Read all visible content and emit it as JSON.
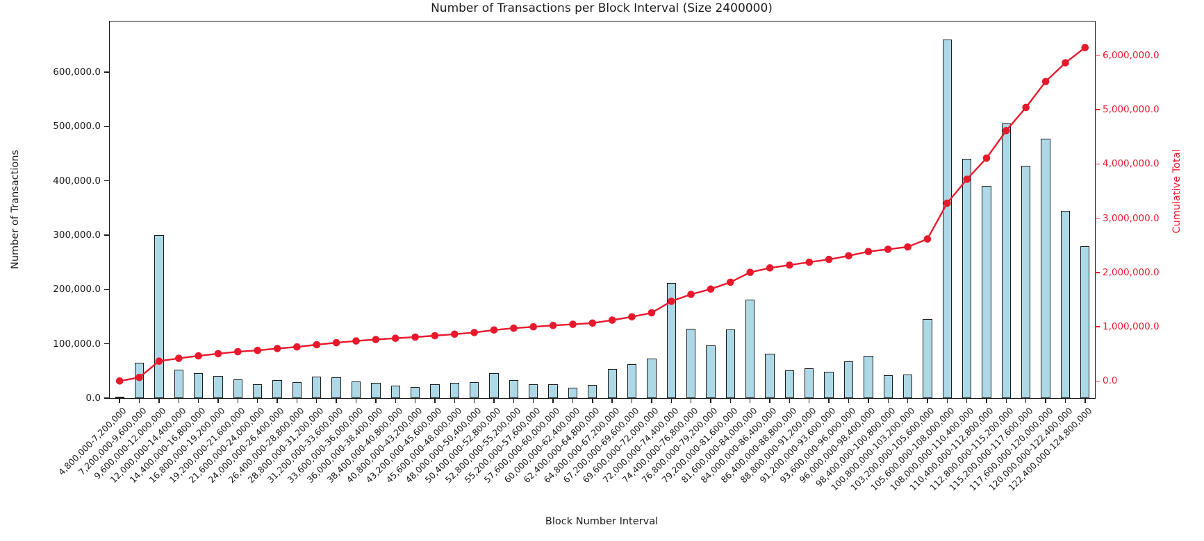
{
  "title": "Number of Transactions per Block Interval (Size 2400000)",
  "accent_color": "#e8192c",
  "bar_color": "#add8e6",
  "bar_edge_color": "#1c1c1c",
  "chart_data": {
    "type": "bar",
    "title": "Number of Transactions per Block Interval (Size 2400000)",
    "xlabel": "Block Number Interval",
    "ylabel_left": "Number of Transactions",
    "ylabel_right": "Cumulative Total",
    "grid": false,
    "legend": "none",
    "categories": [
      "4,800,000-7,200,000",
      "7,200,000-9,600,000",
      "9,600,000-12,000,000",
      "12,000,000-14,400,000",
      "14,400,000-16,800,000",
      "16,800,000-19,200,000",
      "19,200,000-21,600,000",
      "21,600,000-24,000,000",
      "24,000,000-26,400,000",
      "26,400,000-28,800,000",
      "28,800,000-31,200,000",
      "31,200,000-33,600,000",
      "33,600,000-36,000,000",
      "36,000,000-38,400,000",
      "38,400,000-40,800,000",
      "40,800,000-43,200,000",
      "43,200,000-45,600,000",
      "45,600,000-48,000,000",
      "48,000,000-50,400,000",
      "50,400,000-52,800,000",
      "52,800,000-55,200,000",
      "55,200,000-57,600,000",
      "57,600,000-60,000,000",
      "60,000,000-62,400,000",
      "62,400,000-64,800,000",
      "64,800,000-67,200,000",
      "67,200,000-69,600,000",
      "69,600,000-72,000,000",
      "72,000,000-74,400,000",
      "74,400,000-76,800,000",
      "76,800,000-79,200,000",
      "79,200,000-81,600,000",
      "81,600,000-84,000,000",
      "84,000,000-86,400,000",
      "86,400,000-88,800,000",
      "88,800,000-91,200,000",
      "91,200,000-93,600,000",
      "93,600,000-96,000,000",
      "96,000,000-98,400,000",
      "98,400,000-100,800,000",
      "100,800,000-103,200,000",
      "103,200,000-105,600,000",
      "105,600,000-108,000,000",
      "108,000,000-110,400,000",
      "110,400,000-112,800,000",
      "112,800,000-115,200,000",
      "115,200,000-117,600,000",
      "117,600,000-120,000,000",
      "120,000,000-122,400,000",
      "122,400,000-124,800,000"
    ],
    "series": [
      {
        "name": "Number of Transactions",
        "type": "bar",
        "axis": "left",
        "values": [
          2000,
          65500,
          300000,
          52000,
          45500,
          41000,
          35000,
          25000,
          33500,
          30000,
          40000,
          38000,
          31000,
          28000,
          23000,
          21000,
          25500,
          28500,
          30000,
          46000,
          33000,
          26000,
          26000,
          19500,
          24000,
          53000,
          62000,
          73000,
          212000,
          128000,
          97000,
          127000,
          181000,
          82000,
          51500,
          54500,
          49000,
          68000,
          78000,
          41500,
          44000,
          145000,
          660000,
          440000,
          391000,
          505000,
          427000,
          477000,
          345000,
          280000
        ]
      },
      {
        "name": "Cumulative Total",
        "type": "line",
        "axis": "right",
        "values": [
          2000,
          67500,
          367500,
          419500,
          465000,
          506000,
          541000,
          566000,
          599500,
          629500,
          669500,
          707500,
          738500,
          766500,
          789500,
          810500,
          836000,
          864500,
          894500,
          940500,
          973500,
          999500,
          1025500,
          1045000,
          1069000,
          1122000,
          1184000,
          1257000,
          1469000,
          1597000,
          1694000,
          1821000,
          2002000,
          2084000,
          2135500,
          2190000,
          2239000,
          2307000,
          2385000,
          2426500,
          2470500,
          2615500,
          3275500,
          3715500,
          4106500,
          4611500,
          5038500,
          5515500,
          5860500,
          6140500
        ]
      }
    ],
    "left_axis": {
      "tick_labels": [
        "0.0",
        "100,000.0",
        "200,000.0",
        "300,000.0",
        "400,000.0",
        "500,000.0",
        "600,000.0"
      ],
      "tick_values": [
        0,
        100000,
        200000,
        300000,
        400000,
        500000,
        600000
      ],
      "range": [
        0,
        693000
      ]
    },
    "right_axis": {
      "tick_labels": [
        "0.0",
        "1,000,000.0",
        "2,000,000.0",
        "3,000,000.0",
        "4,000,000.0",
        "5,000,000.0",
        "6,000,000.0"
      ],
      "tick_values": [
        0,
        1000000,
        2000000,
        3000000,
        4000000,
        5000000,
        6000000
      ],
      "range": [
        -313000,
        6620000
      ]
    }
  }
}
